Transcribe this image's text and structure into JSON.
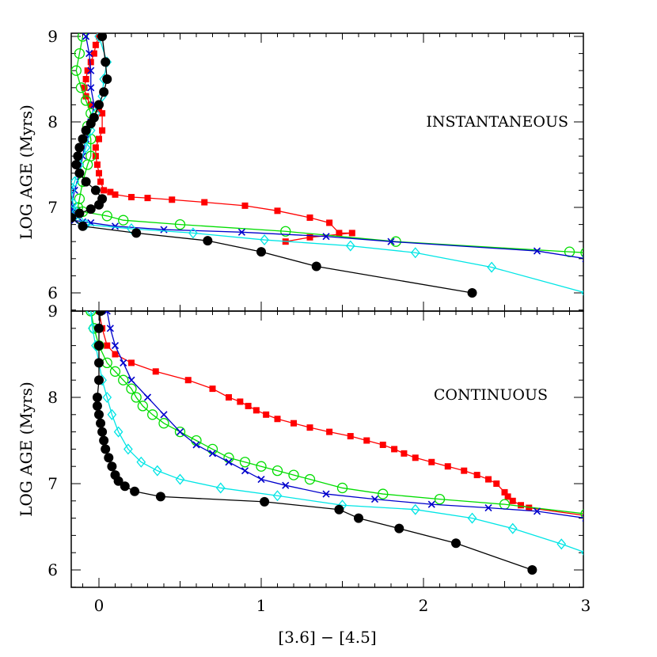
{
  "chart_data": [
    {
      "type": "line",
      "panel": "top",
      "annotation": "INSTANTANEOUS",
      "xlabel": "",
      "ylabel": "LOG AGE (Myrs)",
      "xlim": [
        -0.17,
        3.0
      ],
      "ylim": [
        6.0,
        9.0
      ],
      "xticks": [],
      "yticks": [
        6,
        7,
        8,
        9
      ],
      "series": [
        {
          "color": "#ff0000",
          "marker": "square",
          "points": [
            [
              0.0,
              9.0
            ],
            [
              -0.02,
              8.9
            ],
            [
              -0.03,
              8.8
            ],
            [
              -0.05,
              8.7
            ],
            [
              -0.07,
              8.6
            ],
            [
              -0.08,
              8.5
            ],
            [
              -0.09,
              8.4
            ],
            [
              -0.08,
              8.3
            ],
            [
              -0.05,
              8.2
            ],
            [
              0.0,
              8.15
            ],
            [
              0.02,
              8.1
            ],
            [
              0.02,
              7.9
            ],
            [
              0.0,
              7.8
            ],
            [
              -0.02,
              7.7
            ],
            [
              -0.02,
              7.6
            ],
            [
              -0.01,
              7.5
            ],
            [
              0.0,
              7.4
            ],
            [
              0.01,
              7.3
            ],
            [
              0.03,
              7.2
            ],
            [
              0.07,
              7.18
            ],
            [
              0.1,
              7.15
            ],
            [
              0.2,
              7.12
            ],
            [
              0.3,
              7.11
            ],
            [
              0.45,
              7.09
            ],
            [
              0.65,
              7.06
            ],
            [
              0.9,
              7.02
            ],
            [
              1.1,
              6.96
            ],
            [
              1.3,
              6.88
            ],
            [
              1.42,
              6.82
            ],
            [
              1.48,
              6.7
            ],
            [
              1.56,
              6.7
            ],
            [
              1.3,
              6.65
            ],
            [
              1.15,
              6.6
            ]
          ]
        },
        {
          "color": "#00dd00",
          "marker": "circle",
          "points": [
            [
              -0.1,
              9.0
            ],
            [
              -0.12,
              8.8
            ],
            [
              -0.14,
              8.6
            ],
            [
              -0.11,
              8.4
            ],
            [
              -0.08,
              8.25
            ],
            [
              -0.05,
              8.1
            ],
            [
              -0.07,
              7.95
            ],
            [
              -0.05,
              7.8
            ],
            [
              -0.05,
              7.6
            ],
            [
              -0.07,
              7.5
            ],
            [
              -0.1,
              7.3
            ],
            [
              -0.12,
              7.1
            ],
            [
              -0.13,
              7.0
            ],
            [
              -0.1,
              6.95
            ],
            [
              0.05,
              6.9
            ],
            [
              0.15,
              6.85
            ],
            [
              0.5,
              6.8
            ],
            [
              1.15,
              6.72
            ],
            [
              1.83,
              6.6
            ],
            [
              2.9,
              6.48
            ],
            [
              3.0,
              6.47
            ]
          ]
        },
        {
          "color": "#0000cc",
          "marker": "x",
          "points": [
            [
              -0.08,
              9.0
            ],
            [
              -0.06,
              8.8
            ],
            [
              -0.05,
              8.6
            ],
            [
              -0.05,
              8.4
            ],
            [
              -0.03,
              8.2
            ],
            [
              -0.05,
              8.0
            ],
            [
              -0.08,
              7.8
            ],
            [
              -0.1,
              7.6
            ],
            [
              -0.12,
              7.4
            ],
            [
              -0.15,
              7.2
            ],
            [
              -0.17,
              7.0
            ],
            [
              -0.16,
              6.95
            ],
            [
              -0.15,
              6.85
            ],
            [
              -0.1,
              6.83
            ],
            [
              -0.05,
              6.82
            ],
            [
              0.1,
              6.78
            ],
            [
              0.4,
              6.74
            ],
            [
              0.88,
              6.71
            ],
            [
              1.4,
              6.66
            ],
            [
              1.8,
              6.6
            ],
            [
              2.7,
              6.49
            ],
            [
              3.0,
              6.4
            ]
          ]
        },
        {
          "color": "#00e5e5",
          "marker": "diamond",
          "points": [
            [
              0.0,
              9.0
            ],
            [
              0.05,
              8.7
            ],
            [
              0.03,
              8.5
            ],
            [
              0.02,
              8.3
            ],
            [
              -0.02,
              8.1
            ],
            [
              -0.05,
              7.9
            ],
            [
              -0.08,
              7.7
            ],
            [
              -0.12,
              7.5
            ],
            [
              -0.15,
              7.3
            ],
            [
              -0.17,
              7.2
            ],
            [
              -0.16,
              7.05
            ],
            [
              -0.14,
              6.95
            ],
            [
              -0.12,
              6.85
            ],
            [
              -0.08,
              6.8
            ],
            [
              0.2,
              6.75
            ],
            [
              0.58,
              6.7
            ],
            [
              1.02,
              6.62
            ],
            [
              1.55,
              6.55
            ],
            [
              1.95,
              6.47
            ],
            [
              2.42,
              6.3
            ],
            [
              3.0,
              6.0
            ]
          ]
        },
        {
          "color": "#000000",
          "marker": "circle-filled",
          "points": [
            [
              0.02,
              9.0
            ],
            [
              0.04,
              8.7
            ],
            [
              0.05,
              8.5
            ],
            [
              0.03,
              8.35
            ],
            [
              0.0,
              8.2
            ],
            [
              -0.03,
              8.05
            ],
            [
              -0.05,
              7.98
            ],
            [
              -0.08,
              7.9
            ],
            [
              -0.1,
              7.8
            ],
            [
              -0.12,
              7.7
            ],
            [
              -0.13,
              7.6
            ],
            [
              -0.14,
              7.5
            ],
            [
              -0.12,
              7.4
            ],
            [
              -0.08,
              7.3
            ],
            [
              -0.02,
              7.2
            ],
            [
              0.02,
              7.1
            ],
            [
              0.0,
              7.03
            ],
            [
              -0.05,
              6.98
            ],
            [
              -0.12,
              6.93
            ],
            [
              -0.17,
              6.88
            ],
            [
              -0.1,
              6.78
            ],
            [
              0.23,
              6.7
            ],
            [
              0.67,
              6.61
            ],
            [
              1.0,
              6.48
            ],
            [
              1.34,
              6.31
            ],
            [
              2.3,
              6.0
            ]
          ]
        }
      ]
    },
    {
      "type": "line",
      "panel": "bottom",
      "annotation": "CONTINUOUS",
      "xlabel": "[3.6] − [4.5]",
      "ylabel": "LOG AGE (Myrs)",
      "xlim": [
        -0.17,
        3.0
      ],
      "ylim": [
        5.8,
        9.0
      ],
      "xticks": [
        0,
        1,
        2,
        3
      ],
      "yticks": [
        6,
        7,
        8,
        9
      ],
      "series": [
        {
          "color": "#ff0000",
          "marker": "square",
          "points": [
            [
              0.0,
              9.0
            ],
            [
              0.02,
              8.8
            ],
            [
              0.05,
              8.6
            ],
            [
              0.1,
              8.5
            ],
            [
              0.2,
              8.4
            ],
            [
              0.35,
              8.3
            ],
            [
              0.55,
              8.2
            ],
            [
              0.7,
              8.1
            ],
            [
              0.8,
              8.0
            ],
            [
              0.87,
              7.95
            ],
            [
              0.92,
              7.9
            ],
            [
              0.97,
              7.85
            ],
            [
              1.03,
              7.8
            ],
            [
              1.1,
              7.75
            ],
            [
              1.2,
              7.7
            ],
            [
              1.3,
              7.65
            ],
            [
              1.42,
              7.6
            ],
            [
              1.55,
              7.55
            ],
            [
              1.65,
              7.5
            ],
            [
              1.75,
              7.45
            ],
            [
              1.82,
              7.4
            ],
            [
              1.88,
              7.35
            ],
            [
              1.95,
              7.3
            ],
            [
              2.05,
              7.25
            ],
            [
              2.15,
              7.2
            ],
            [
              2.25,
              7.15
            ],
            [
              2.33,
              7.1
            ],
            [
              2.4,
              7.05
            ],
            [
              2.45,
              7.0
            ],
            [
              2.5,
              6.9
            ],
            [
              2.52,
              6.85
            ],
            [
              2.55,
              6.8
            ],
            [
              2.6,
              6.75
            ],
            [
              2.65,
              6.72
            ],
            [
              3.0,
              6.63
            ]
          ]
        },
        {
          "color": "#00dd00",
          "marker": "circle",
          "points": [
            [
              -0.05,
              9.0
            ],
            [
              -0.03,
              8.8
            ],
            [
              0.0,
              8.6
            ],
            [
              0.05,
              8.4
            ],
            [
              0.1,
              8.3
            ],
            [
              0.15,
              8.2
            ],
            [
              0.2,
              8.1
            ],
            [
              0.23,
              8.0
            ],
            [
              0.27,
              7.9
            ],
            [
              0.33,
              7.8
            ],
            [
              0.4,
              7.7
            ],
            [
              0.5,
              7.6
            ],
            [
              0.6,
              7.5
            ],
            [
              0.7,
              7.4
            ],
            [
              0.8,
              7.3
            ],
            [
              0.9,
              7.25
            ],
            [
              1.0,
              7.2
            ],
            [
              1.1,
              7.15
            ],
            [
              1.2,
              7.1
            ],
            [
              1.3,
              7.05
            ],
            [
              1.5,
              6.95
            ],
            [
              1.75,
              6.88
            ],
            [
              2.1,
              6.82
            ],
            [
              2.5,
              6.76
            ],
            [
              3.0,
              6.65
            ]
          ]
        },
        {
          "color": "#0000cc",
          "marker": "x",
          "points": [
            [
              0.05,
              9.0
            ],
            [
              0.07,
              8.8
            ],
            [
              0.1,
              8.6
            ],
            [
              0.15,
              8.4
            ],
            [
              0.2,
              8.2
            ],
            [
              0.3,
              8.0
            ],
            [
              0.4,
              7.8
            ],
            [
              0.5,
              7.6
            ],
            [
              0.6,
              7.45
            ],
            [
              0.7,
              7.35
            ],
            [
              0.8,
              7.25
            ],
            [
              0.9,
              7.15
            ],
            [
              1.0,
              7.05
            ],
            [
              1.15,
              6.98
            ],
            [
              1.4,
              6.88
            ],
            [
              1.7,
              6.82
            ],
            [
              2.05,
              6.76
            ],
            [
              2.4,
              6.72
            ],
            [
              2.7,
              6.68
            ],
            [
              3.0,
              6.6
            ]
          ]
        },
        {
          "color": "#00e5e5",
          "marker": "diamond",
          "points": [
            [
              -0.05,
              9.0
            ],
            [
              -0.04,
              8.8
            ],
            [
              -0.02,
              8.6
            ],
            [
              0.0,
              8.4
            ],
            [
              0.02,
              8.2
            ],
            [
              0.05,
              8.0
            ],
            [
              0.08,
              7.8
            ],
            [
              0.12,
              7.6
            ],
            [
              0.18,
              7.4
            ],
            [
              0.26,
              7.25
            ],
            [
              0.36,
              7.15
            ],
            [
              0.5,
              7.05
            ],
            [
              0.75,
              6.95
            ],
            [
              1.1,
              6.86
            ],
            [
              1.5,
              6.75
            ],
            [
              1.95,
              6.7
            ],
            [
              2.3,
              6.6
            ],
            [
              2.55,
              6.48
            ],
            [
              2.85,
              6.3
            ],
            [
              3.0,
              6.2
            ]
          ]
        },
        {
          "color": "#000000",
          "marker": "circle-filled",
          "points": [
            [
              0.01,
              9.0
            ],
            [
              0.0,
              8.8
            ],
            [
              0.0,
              8.6
            ],
            [
              0.0,
              8.4
            ],
            [
              0.0,
              8.2
            ],
            [
              -0.01,
              8.0
            ],
            [
              -0.01,
              7.9
            ],
            [
              0.0,
              7.8
            ],
            [
              0.01,
              7.7
            ],
            [
              0.02,
              7.6
            ],
            [
              0.03,
              7.5
            ],
            [
              0.04,
              7.4
            ],
            [
              0.06,
              7.3
            ],
            [
              0.08,
              7.2
            ],
            [
              0.1,
              7.1
            ],
            [
              0.12,
              7.03
            ],
            [
              0.16,
              6.97
            ],
            [
              0.22,
              6.91
            ],
            [
              0.38,
              6.85
            ],
            [
              1.02,
              6.79
            ],
            [
              1.48,
              6.7
            ],
            [
              1.6,
              6.6
            ],
            [
              1.85,
              6.48
            ],
            [
              2.2,
              6.31
            ],
            [
              2.67,
              6.0
            ]
          ]
        }
      ]
    }
  ]
}
